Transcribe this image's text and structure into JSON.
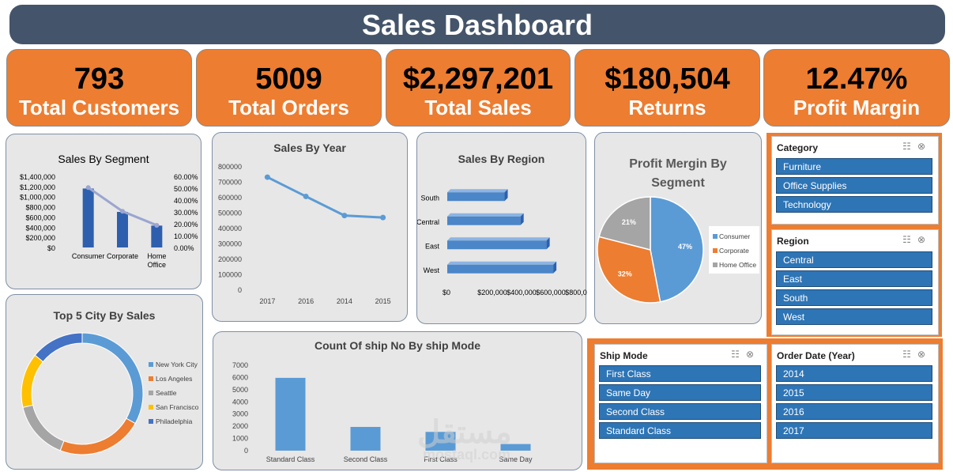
{
  "title": "Sales Dashboard",
  "kpis": [
    {
      "value": "793",
      "label": "Total Customers"
    },
    {
      "value": "5009",
      "label": "Total Orders"
    },
    {
      "value": "$2,297,201",
      "label": "Total Sales"
    },
    {
      "value": "$180,504",
      "label": "Returns"
    },
    {
      "value": "12.47%",
      "label": "Profit Margin"
    }
  ],
  "colors": {
    "kpi": "#ed7d31",
    "title_bar": "#44546a",
    "bar": "#2e5fae",
    "slicer_item": "#2e75b6"
  },
  "chart_data": [
    {
      "type": "bar",
      "title": "Sales By Segment",
      "categories": [
        "Consumer",
        "Corporate",
        "Home Office"
      ],
      "series": [
        {
          "values": [
            1160000,
            700000,
            430000
          ],
          "axis": "left"
        },
        {
          "values": [
            50.5,
            30.5,
            18.7
          ],
          "axis": "right",
          "type": "line"
        }
      ],
      "yticks": [
        "$1,400,000",
        "$1,200,000",
        "$1,000,000",
        "$800,000",
        "$600,000",
        "$400,000",
        "$200,000",
        "$0"
      ],
      "y2ticks": [
        "60.00%",
        "50.00%",
        "40.00%",
        "30.00%",
        "20.00%",
        "10.00%",
        "0.00%"
      ],
      "ylim": [
        0,
        1400000
      ],
      "y2lim": [
        0,
        60
      ]
    },
    {
      "type": "line",
      "title": "Sales By Year",
      "categories": [
        "2017",
        "2016",
        "2014",
        "2015"
      ],
      "values": [
        733000,
        608000,
        484000,
        471000
      ],
      "yticks": [
        "800000",
        "700000",
        "600000",
        "500000",
        "400000",
        "300000",
        "200000",
        "100000",
        "0"
      ],
      "ylim": [
        0,
        800000
      ]
    },
    {
      "type": "bar",
      "title": "Sales By Region",
      "orientation": "horizontal",
      "categories": [
        "South",
        "Central",
        "East",
        "West"
      ],
      "values": [
        392000,
        501000,
        679000,
        725000
      ],
      "xticks": [
        "$0",
        "$200,000",
        "$400,000",
        "$600,000",
        "$800,000"
      ],
      "xlim": [
        0,
        800000
      ]
    },
    {
      "type": "pie",
      "title": "Profit Mergin By Segment",
      "labels": [
        "Consumer",
        "Corporate",
        "Home Office"
      ],
      "values": [
        47,
        32,
        21
      ],
      "data_labels": [
        "47%",
        "32%",
        "21%"
      ],
      "colors": [
        "#5b9bd5",
        "#ed7d31",
        "#a5a5a5"
      ],
      "legend": "right"
    },
    {
      "type": "pie",
      "title": "Top 5 City By Sales",
      "labels": [
        "New York City",
        "Los Angeles",
        "Seattle",
        "San Francisco",
        "Philadelphia"
      ],
      "values": [
        256000,
        176000,
        120000,
        112000,
        109000
      ],
      "colors": [
        "#5b9bd5",
        "#ed7d31",
        "#a5a5a5",
        "#ffc000",
        "#4472c4"
      ],
      "legend": "right"
    },
    {
      "type": "bar",
      "title": "Count Of ship No By ship Mode",
      "categories": [
        "Standard Class",
        "Second Class",
        "First Class",
        "Same Day"
      ],
      "values": [
        5968,
        1945,
        1538,
        543
      ],
      "yticks": [
        "7000",
        "6000",
        "5000",
        "4000",
        "3000",
        "2000",
        "1000",
        "0"
      ],
      "ylim": [
        0,
        7000
      ]
    }
  ],
  "slicers": [
    {
      "title": "Category",
      "items": [
        "Furniture",
        "Office Supplies",
        "Technology"
      ]
    },
    {
      "title": "Region",
      "items": [
        "Central",
        "East",
        "South",
        "West"
      ]
    },
    {
      "title": "Ship Mode",
      "items": [
        "First Class",
        "Same Day",
        "Second Class",
        "Standard Class"
      ]
    },
    {
      "title": "Order Date (Year)",
      "items": [
        "2014",
        "2015",
        "2016",
        "2017"
      ]
    }
  ],
  "slicer_icons": [
    "multi-select-icon",
    "clear-filter-icon"
  ],
  "watermark": {
    "arabic": "مستقل",
    "latin": "mostaql.com"
  }
}
